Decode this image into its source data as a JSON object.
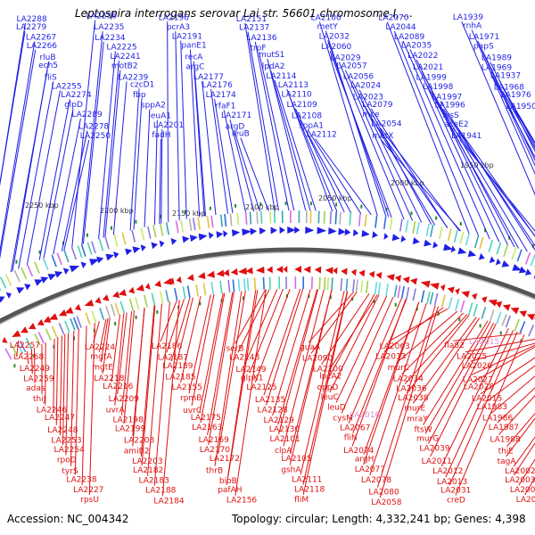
{
  "header": {
    "title": "Leptospira interrogans serovar Lai str. 56601 chromosome I, ..."
  },
  "footer": {
    "accession": "Accession: NC_004342",
    "summary": "Topology: circular; Length: 4,332,241 bp; Genes: 4,398"
  },
  "colors": {
    "plus_strand": "#1f1fe6",
    "minus_strand": "#e01010",
    "highlight": "#e08fd0",
    "backbone": "#555555",
    "tick": "#2a8a2a"
  },
  "scale_ticks": [
    "2250 kbp",
    "2200 kbp",
    "2150 kbp",
    "2100 kbp",
    "2050 kbp",
    "2000 kbp",
    "1950 kbp"
  ],
  "top_labels": [
    "LA2288",
    "LA2279",
    "LA2267",
    "LA2266",
    "rluB",
    "ech5",
    "fliS",
    "LA2255",
    "LA2274",
    "glpD",
    "LA2289",
    "LA2278",
    "LA2250",
    "LA2236",
    "LA2235",
    "LA2234",
    "LA2225",
    "LA2241",
    "motB2",
    "LA2239",
    "czcD1",
    "fbp",
    "sppA2",
    "leuA1",
    "LA2201",
    "fadH",
    "LA2196",
    "pcrA3",
    "LA2191",
    "panE1",
    "recA",
    "argC",
    "LA2177",
    "LA2176",
    "LA2174",
    "rfaF1",
    "LA2171",
    "argD",
    "leuB",
    "LA2151",
    "LA2137",
    "LA2136",
    "trpF",
    "mutS1",
    "lpdA2",
    "LA2114",
    "LA2113",
    "LA2110",
    "LA2109",
    "LA2108",
    "sppA1",
    "LA2112",
    "LA2100",
    "metY",
    "LA2032",
    "LA2060",
    "LA2029",
    "LA2057",
    "LA2056",
    "LA2024",
    "LA2023",
    "LA2079",
    "mce",
    "LA2054",
    "metX",
    "LA2070",
    "LA2044",
    "LA2089",
    "LA2035",
    "LA2022",
    "LA2021",
    "LA1999",
    "LA1998",
    "LA1997",
    "LA1996",
    "lysS",
    "aceE2",
    "LA1941",
    "LA1939",
    "rnhA",
    "LA1971",
    "papS",
    "LA1989",
    "LA1969",
    "LA1937",
    "LA1968",
    "LA1976",
    "LA1950"
  ],
  "bottom_labels": [
    "LA2257",
    "LA2268",
    "LA2249",
    "LA2259",
    "adas",
    "thiJ",
    "LA2246",
    "LA2247",
    "LA2248",
    "LA2253",
    "LA2254",
    "rpoD",
    "tyrS",
    "LA2238",
    "LA2227",
    "rpsU",
    "LA2224",
    "mgtA",
    "mgtE",
    "LA2218",
    "LA2216",
    "LA2209",
    "uvrA",
    "LA2198",
    "LA2199",
    "LA2208",
    "amiB2",
    "LA2203",
    "LA2182",
    "LA2183",
    "LA2188",
    "LA2184",
    "LA2186",
    "LA2187",
    "LA2189",
    "LA2185",
    "LA2155",
    "rpmB",
    "uvrC",
    "LA2175",
    "LA2163",
    "LA2169",
    "LA2170",
    "LA2172",
    "thrB",
    "bioB",
    "pafAH",
    "LA2156",
    "serB",
    "LA2148",
    "LA2149",
    "glpK1",
    "LA2125",
    "LA2135",
    "LA2128",
    "LA2129",
    "LA2130",
    "LA2101",
    "clpA",
    "LA2105",
    "gshA",
    "LA2111",
    "LA2118",
    "fliM",
    "guaA",
    "LA2090",
    "LA2100",
    "lpcA2",
    "oppD",
    "leuC",
    "leuD",
    "cysM",
    "LA2067",
    "fliN",
    "LA2074",
    "argH",
    "LA2077",
    "LA2078",
    "LA2080",
    "LA2058",
    "LA2063",
    "LA2033",
    "murC",
    "LA2034",
    "LA2036",
    "LA2038",
    "murE",
    "mraY",
    "ftsW",
    "murG",
    "LA2039",
    "LA2011",
    "LA2012",
    "LA2013",
    "LA2031",
    "creD",
    "fla82",
    "LA2025",
    "LA2026",
    "LA2027",
    "LA2028",
    "LA2015",
    "LA1983",
    "LA1986",
    "LA1987",
    "LA1988",
    "thiE",
    "tagA",
    "LA2002",
    "LA2003",
    "LA2004",
    "LA2005"
  ],
  "highlighted_bottom_labels": [
    "LA2016",
    "LA2015"
  ]
}
